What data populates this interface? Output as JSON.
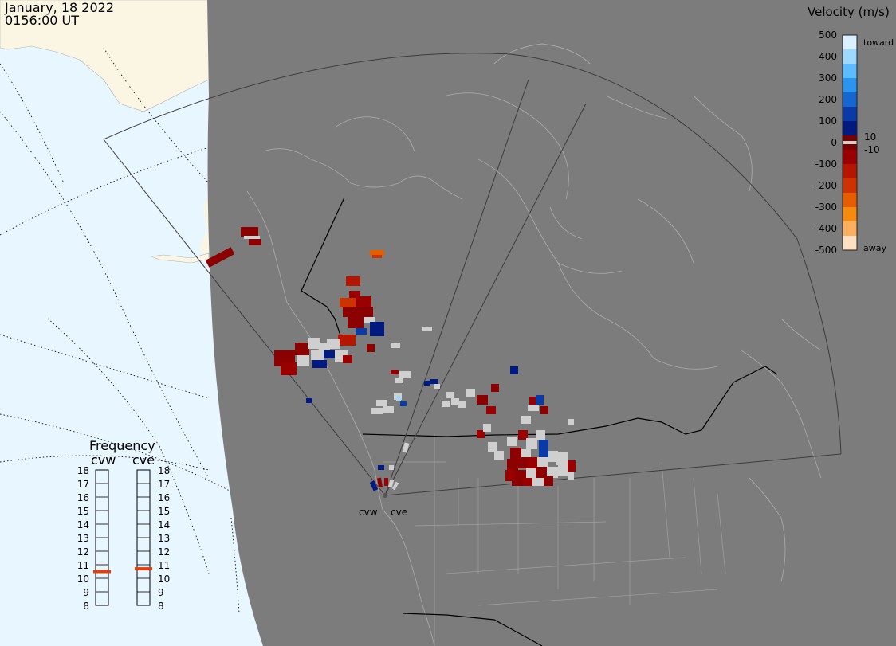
{
  "header": {
    "date": "January, 18 2022",
    "time": "0156:00 UT"
  },
  "legend": {
    "title": "Velocity (m/s)",
    "ticks": [
      "500",
      "400",
      "300",
      "200",
      "100",
      "0",
      "-100",
      "-200",
      "-300",
      "-400",
      "-500"
    ],
    "toward_label": "toward",
    "away_label": "away",
    "pos_threshold": "10",
    "neg_threshold": "-10",
    "colors": [
      "#d8f0ff",
      "#9fd8ff",
      "#5cbcff",
      "#2b94ee",
      "#1666d0",
      "#0a3aa6",
      "#001a80",
      "#7a0000",
      "#9a0000",
      "#b41600",
      "#cc3300",
      "#e45e00",
      "#f58a10",
      "#fbb060",
      "#fde0c0"
    ]
  },
  "frequency": {
    "title": "Frequency",
    "left_radar": "cvw",
    "right_radar": "cve",
    "scale": [
      "18",
      "17",
      "16",
      "15",
      "14",
      "13",
      "12",
      "11",
      "10",
      "9",
      "8"
    ],
    "cvw_mhz": 10.5,
    "cve_mhz": 10.7,
    "marker_color": "#e04010"
  },
  "radars": {
    "west_label": "cvw",
    "east_label": "cve"
  },
  "map_colors": {
    "ocean": "#e8f6ff",
    "land_outside": "#fbf6e4",
    "night": "#7c7c7c",
    "coast": "#a8a8a8",
    "fov": "#3c3c3c",
    "ground_scatter": "#cfcfcf"
  }
}
